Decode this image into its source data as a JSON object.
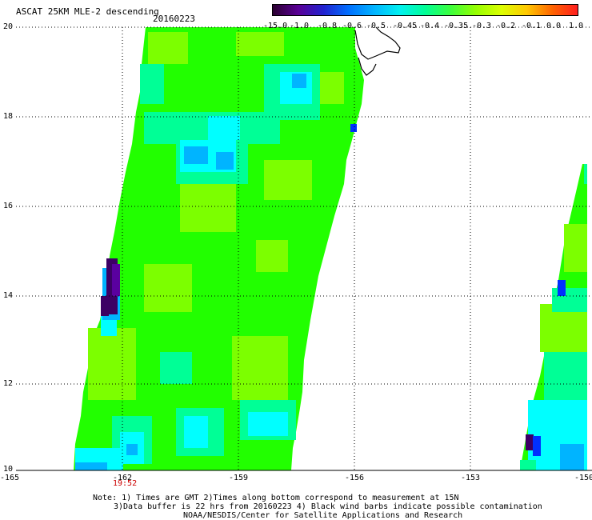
{
  "title": "ASCAT 25KM MLE-2 descending",
  "date": "20160223",
  "colorbar": {
    "labels": [
      "-15.0",
      "-1.0",
      "-0.8",
      "-0.6",
      "-0.5",
      "-0.45",
      "-0.4",
      "-0.35",
      "-0.3",
      "-0.2",
      "-0.1",
      "0.0",
      "1.0"
    ],
    "colors": [
      "#2a0030",
      "#5a0096",
      "#2222d0",
      "#0070ff",
      "#00b4ff",
      "#00f0f0",
      "#00ff96",
      "#3cff3c",
      "#96ff00",
      "#dcff00",
      "#ffc800",
      "#ff6400",
      "#ff1e1e"
    ]
  },
  "axes": {
    "lat_labels": [
      "20",
      "18",
      "16",
      "14",
      "12",
      "10"
    ],
    "lon_labels": [
      "-165",
      "-162",
      "-159",
      "-156",
      "-153",
      "-150"
    ]
  },
  "time_label": "19:52",
  "notes": {
    "line1": "Note: 1) Times are GMT 2)Times along bottom correspond to measurement at 15N",
    "line2": "3)Data buffer is 22 hrs from 20160223 4) Black wind barbs indicate possible contamination",
    "line3": "NOAA/NESDIS/Center for Satellite Applications and Research"
  },
  "swath_colors": {
    "green": "#00ff00",
    "yellow_green": "#7cff00",
    "light_green": "#3cff3c",
    "aqua_green": "#00ff96",
    "cyan": "#00ffff",
    "light_blue": "#00c8ff",
    "blue": "#0030ff",
    "dark_purple": "#3c0050"
  }
}
